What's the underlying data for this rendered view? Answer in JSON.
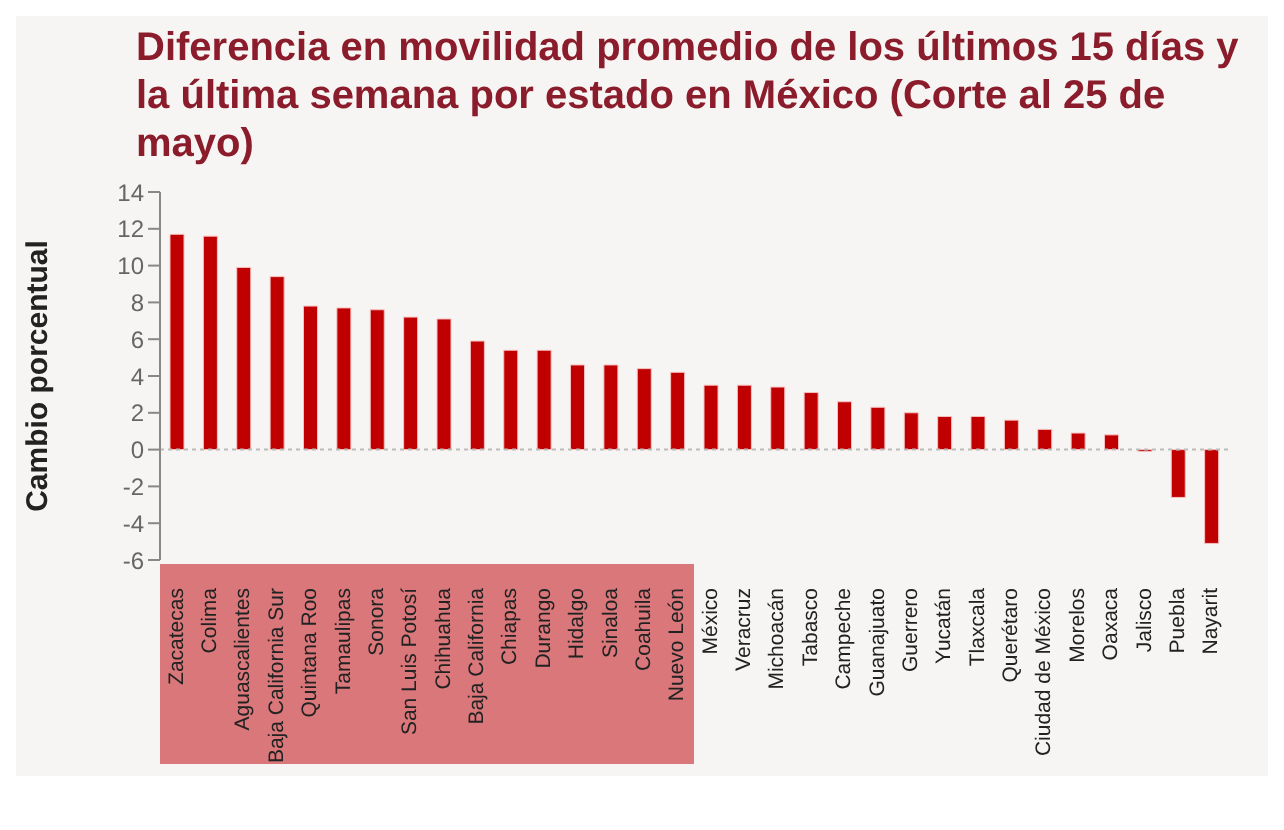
{
  "chart_data": {
    "type": "bar",
    "title": "Diferencia en movilidad promedio de los últimos 15 días y la última semana por estado en México (Corte al 25 de mayo)",
    "ylabel": "Cambio porcentual",
    "categories": [
      "Zacatecas",
      "Colima",
      "Aguascalientes",
      "Baja California Sur",
      "Quintana Roo",
      "Tamaulipas",
      "Sonora",
      "San Luis Potosí",
      "Chihuahua",
      "Baja California",
      "Chiapas",
      "Durango",
      "Hidalgo",
      "Sinaloa",
      "Coahuila",
      "Nuevo León",
      "México",
      "Veracruz",
      "Michoacán",
      "Tabasco",
      "Campeche",
      "Guanajuato",
      "Guerrero",
      "Yucatán",
      "Tlaxcala",
      "Querétaro",
      "Ciudad de México",
      "Morelos",
      "Oaxaca",
      "Jalisco",
      "Puebla",
      "Nayarit"
    ],
    "values": [
      11.7,
      11.6,
      9.9,
      9.4,
      7.8,
      7.7,
      7.6,
      7.2,
      7.1,
      5.9,
      5.4,
      5.4,
      4.6,
      4.6,
      4.4,
      4.2,
      3.5,
      3.5,
      3.4,
      3.1,
      2.6,
      2.3,
      2.0,
      1.8,
      1.8,
      1.6,
      1.1,
      0.9,
      0.8,
      -0.1,
      -2.6,
      -5.1
    ],
    "color": "#c00000",
    "ylim": [
      -6,
      14
    ],
    "yticks": [
      -6,
      -4,
      -2,
      0,
      2,
      4,
      6,
      8,
      10,
      12,
      14
    ],
    "ref_lines": [
      {
        "axis": "y",
        "value": 0,
        "color": "#bbbbbb",
        "line_style": "dotted"
      }
    ]
  }
}
